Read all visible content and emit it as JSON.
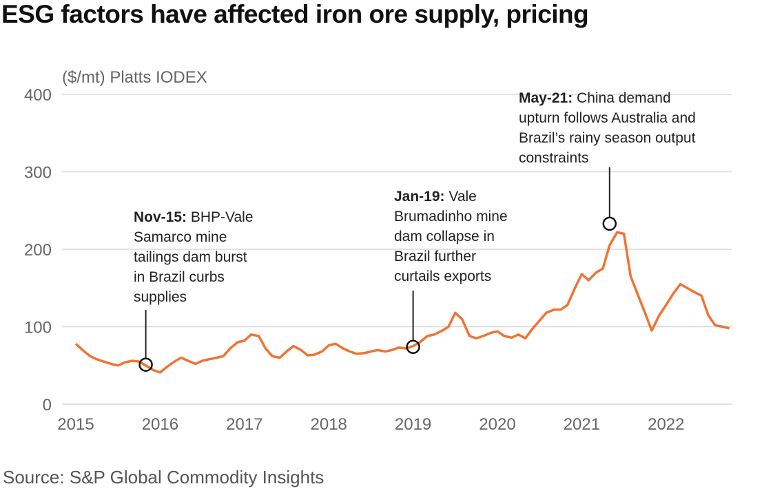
{
  "title": "ESG factors have affected iron ore supply, pricing",
  "source": "Source: S&P Global Commodity Insights",
  "colors": {
    "line": "#f07334",
    "grid": "#d9d9d9",
    "text": "#666666"
  },
  "chart_data": {
    "type": "line",
    "title": "ESG factors have affected iron ore supply, pricing",
    "ylabel": "($/mt) Platts IODEX",
    "xlabel": "",
    "ylim": [
      0,
      400
    ],
    "xlim": [
      2015.0,
      2022.8
    ],
    "yticks": [
      "0",
      "100",
      "200",
      "300",
      "400"
    ],
    "xticks": [
      "2015",
      "2016",
      "2017",
      "2018",
      "2019",
      "2020",
      "2021",
      "2022"
    ],
    "series": [
      {
        "name": "Platts IODEX",
        "x": [
          2015.0,
          2015.08,
          2015.17,
          2015.25,
          2015.33,
          2015.42,
          2015.5,
          2015.58,
          2015.67,
          2015.75,
          2015.83,
          2015.92,
          2016.0,
          2016.08,
          2016.17,
          2016.25,
          2016.33,
          2016.42,
          2016.5,
          2016.58,
          2016.67,
          2016.75,
          2016.83,
          2016.92,
          2017.0,
          2017.08,
          2017.17,
          2017.25,
          2017.33,
          2017.42,
          2017.5,
          2017.58,
          2017.67,
          2017.75,
          2017.83,
          2017.92,
          2018.0,
          2018.08,
          2018.17,
          2018.25,
          2018.33,
          2018.42,
          2018.5,
          2018.58,
          2018.67,
          2018.75,
          2018.83,
          2018.92,
          2019.0,
          2019.08,
          2019.17,
          2019.25,
          2019.33,
          2019.42,
          2019.5,
          2019.58,
          2019.67,
          2019.75,
          2019.83,
          2019.92,
          2020.0,
          2020.08,
          2020.17,
          2020.25,
          2020.33,
          2020.42,
          2020.5,
          2020.58,
          2020.67,
          2020.75,
          2020.83,
          2020.92,
          2021.0,
          2021.08,
          2021.17,
          2021.25,
          2021.33,
          2021.42,
          2021.5,
          2021.58,
          2021.67,
          2021.75,
          2021.83,
          2021.92,
          2022.0,
          2022.08,
          2022.17,
          2022.25,
          2022.33,
          2022.42,
          2022.5,
          2022.58,
          2022.67,
          2022.75
        ],
        "values": [
          78,
          70,
          62,
          58,
          55,
          52,
          50,
          54,
          56,
          55,
          50,
          44,
          41,
          48,
          55,
          60,
          56,
          52,
          56,
          58,
          60,
          62,
          72,
          80,
          82,
          90,
          88,
          72,
          62,
          60,
          68,
          75,
          70,
          63,
          64,
          68,
          76,
          78,
          72,
          68,
          65,
          66,
          68,
          70,
          68,
          70,
          73,
          72,
          75,
          80,
          88,
          90,
          94,
          100,
          118,
          110,
          88,
          85,
          88,
          92,
          94,
          88,
          86,
          90,
          85,
          98,
          108,
          118,
          122,
          122,
          128,
          150,
          168,
          160,
          170,
          175,
          205,
          222,
          220,
          165,
          140,
          118,
          95,
          115,
          128,
          142,
          155,
          150,
          145,
          140,
          115,
          102,
          100,
          98
        ]
      }
    ],
    "annotations": [
      {
        "label_bold": "Nov-15:",
        "lines": [
          "BHP-Vale",
          "Samarco mine",
          "tailings dam burst",
          "in Brazil curbs",
          "supplies"
        ],
        "x": 2015.83,
        "y": 51
      },
      {
        "label_bold": "Jan-19:",
        "lines": [
          " Vale",
          "Brumadinho mine",
          "dam collapse in",
          "Brazil further",
          "curtails exports"
        ],
        "x": 2019.0,
        "y": 74
      },
      {
        "label_bold": "May-21:",
        "lines": [
          "China demand",
          "upturn follows Australia and",
          "Brazil’s rainy season output",
          "constraints"
        ],
        "x": 2021.33,
        "y": 233
      }
    ]
  }
}
